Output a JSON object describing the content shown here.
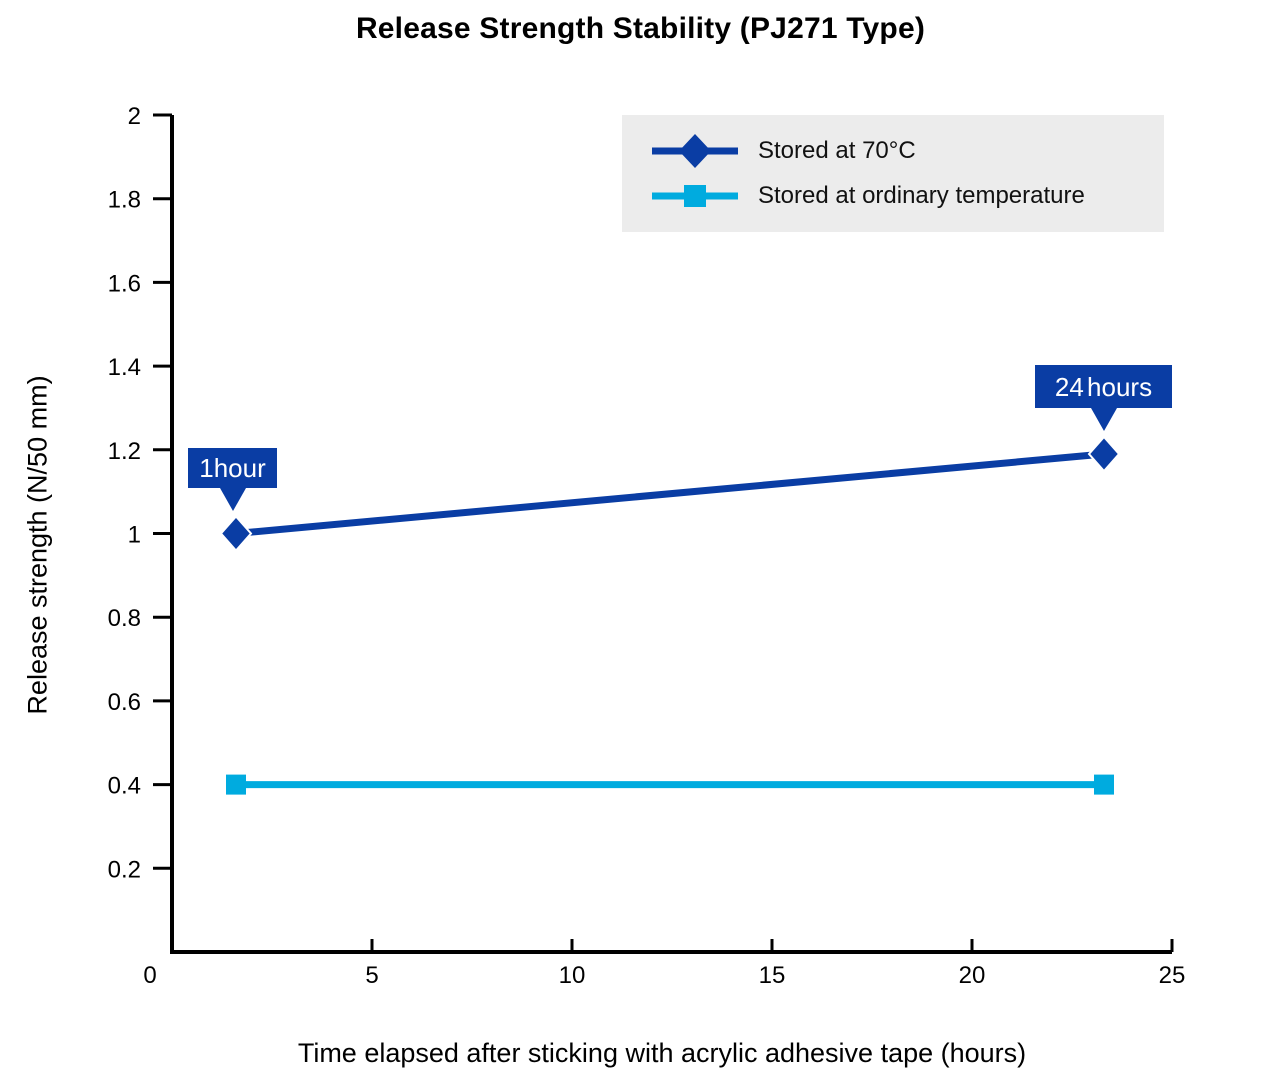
{
  "colors": {
    "series_70c_blue": "#0a3da4",
    "series_ordinary_cyan": "#00abdf",
    "legend_background": "#ececec",
    "callout_text": "#ffffff",
    "axis_black": "#000000"
  },
  "chart_data": {
    "type": "line",
    "title": "Release Strength Stability (PJ271 Type)",
    "xlabel": "Time elapsed after sticking with acrylic adhesive tape (hours)",
    "ylabel": "Release strength (N/50 mm)",
    "xlim": [
      0,
      25
    ],
    "ylim": [
      0,
      2
    ],
    "grid": false,
    "x_ticks": [
      5,
      10,
      15,
      20,
      25
    ],
    "x_tick_labels": [
      "5",
      "10",
      "15",
      "20",
      "25"
    ],
    "y_ticks": [
      0.2,
      0.4,
      0.6,
      0.8,
      1,
      1.2,
      1.4,
      1.6,
      1.8,
      2
    ],
    "y_tick_labels": [
      "0.2",
      "0.4",
      "0.6",
      "0.8",
      "1",
      "1.2",
      "1.4",
      "1.6",
      "1.8",
      "2"
    ],
    "origin_label": "0",
    "legend": {
      "position": "top-right",
      "background": "#ececec"
    },
    "series": [
      {
        "name": "Stored at 70°C",
        "color": "#0a3da4",
        "marker": "diamond",
        "x_hours": [
          1,
          24
        ],
        "x_plotted": [
          1.6,
          23.3
        ],
        "values": [
          1.0,
          1.19
        ]
      },
      {
        "name": "Stored at ordinary temperature",
        "color": "#00abdf",
        "marker": "square",
        "x_hours": [
          1,
          24
        ],
        "x_plotted": [
          1.6,
          23.3
        ],
        "values": [
          0.4,
          0.4
        ]
      }
    ],
    "annotations": [
      {
        "text": "1hour",
        "series": "Stored at 70°C",
        "point_index": 0
      },
      {
        "text": "24 hours",
        "series": "Stored at 70°C",
        "point_index": 1
      }
    ]
  }
}
